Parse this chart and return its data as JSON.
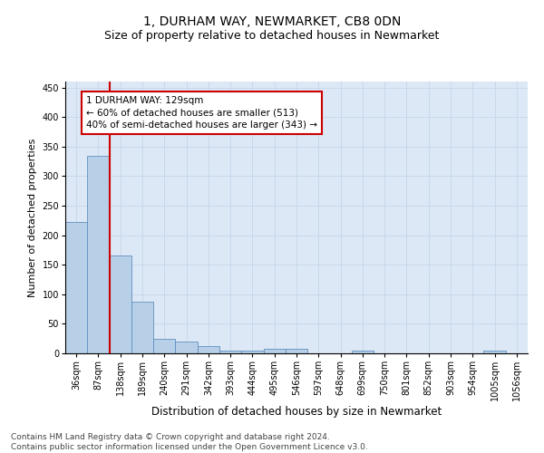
{
  "title": "1, DURHAM WAY, NEWMARKET, CB8 0DN",
  "subtitle": "Size of property relative to detached houses in Newmarket",
  "xlabel": "Distribution of detached houses by size in Newmarket",
  "ylabel": "Number of detached properties",
  "bar_labels": [
    "36sqm",
    "87sqm",
    "138sqm",
    "189sqm",
    "240sqm",
    "291sqm",
    "342sqm",
    "393sqm",
    "444sqm",
    "495sqm",
    "546sqm",
    "597sqm",
    "648sqm",
    "699sqm",
    "750sqm",
    "801sqm",
    "852sqm",
    "903sqm",
    "954sqm",
    "1005sqm",
    "1056sqm"
  ],
  "bar_values": [
    222,
    335,
    165,
    87,
    25,
    20,
    12,
    5,
    5,
    8,
    8,
    0,
    0,
    5,
    0,
    0,
    0,
    0,
    0,
    4,
    0
  ],
  "bar_color": "#b8cfe8",
  "bar_edge_color": "#6090c0",
  "vline_color": "#cc0000",
  "annotation_text": "1 DURHAM WAY: 129sqm\n← 60% of detached houses are smaller (513)\n40% of semi-detached houses are larger (343) →",
  "annotation_box_color": "#ffffff",
  "annotation_box_edge": "#cc0000",
  "ylim": [
    0,
    460
  ],
  "yticks": [
    0,
    50,
    100,
    150,
    200,
    250,
    300,
    350,
    400,
    450
  ],
  "grid_color": "#c8d8ec",
  "bg_color": "#dce8f5",
  "footer": "Contains HM Land Registry data © Crown copyright and database right 2024.\nContains public sector information licensed under the Open Government Licence v3.0.",
  "title_fontsize": 10,
  "subtitle_fontsize": 9,
  "xlabel_fontsize": 8.5,
  "ylabel_fontsize": 8,
  "tick_fontsize": 7,
  "footer_fontsize": 6.5,
  "annot_fontsize": 7.5
}
